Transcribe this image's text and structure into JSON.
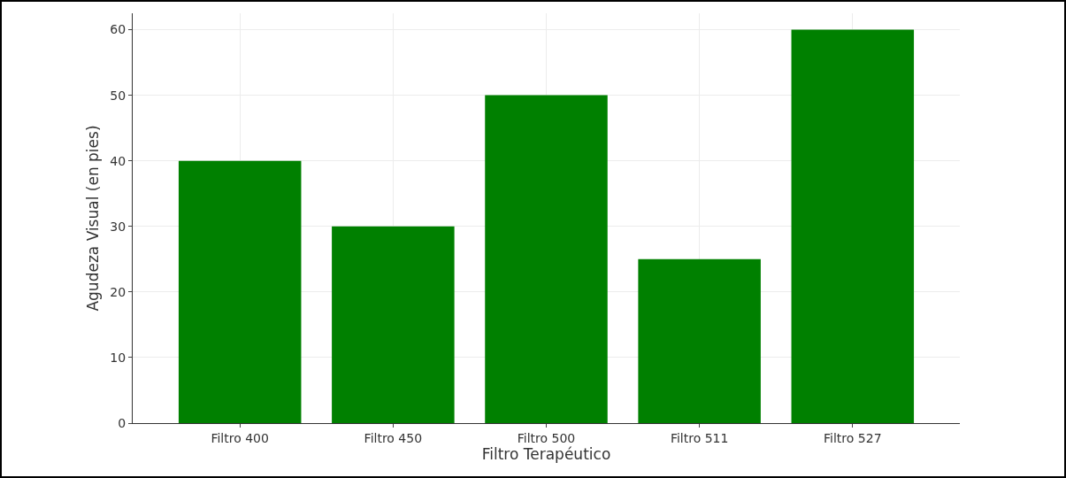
{
  "chart_data": {
    "type": "bar",
    "xlabel": "Filtro Terapéutico",
    "ylabel": "Agudeza Visual (en pies)",
    "categories": [
      "Filtro 400",
      "Filtro 450",
      "Filtro 500",
      "Filtro 511",
      "Filtro 527"
    ],
    "values": [
      40,
      30,
      50,
      25,
      60
    ],
    "color": "#008000",
    "ylim": [
      0,
      62.5
    ],
    "yticks": [
      0,
      10,
      20,
      30,
      40,
      50,
      60
    ],
    "grid": true,
    "legend": false
  }
}
